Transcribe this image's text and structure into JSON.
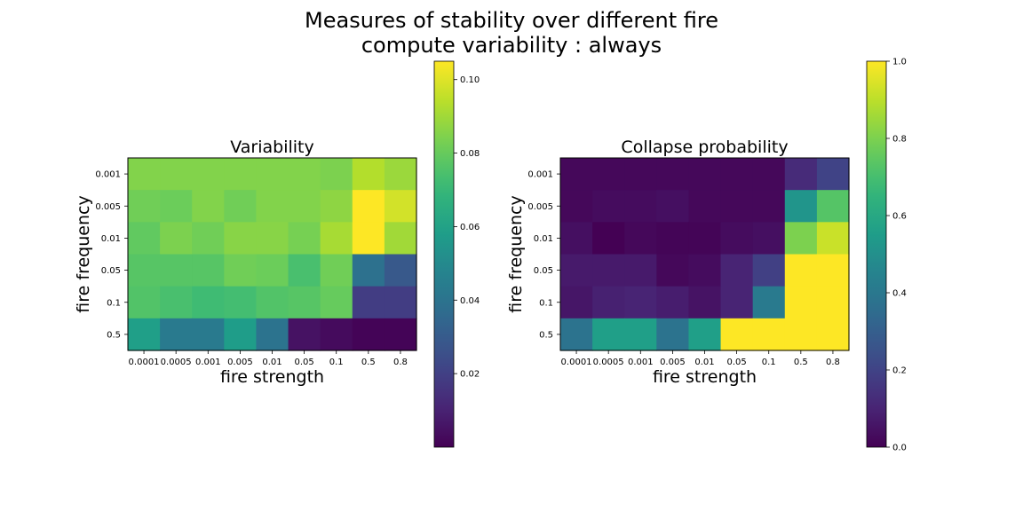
{
  "figure": {
    "title_line1": "Measures of stability over different fire",
    "title_line2": "compute variability : always"
  },
  "chart_data": [
    {
      "type": "heatmap",
      "title": "Variability",
      "xlabel": "fire strength",
      "ylabel": "fire frequency",
      "x_categories": [
        "0.0001",
        "0.0005",
        "0.001",
        "0.005",
        "0.01",
        "0.05",
        "0.1",
        "0.5",
        "0.8"
      ],
      "y_categories": [
        "0.001",
        "0.005",
        "0.01",
        "0.05",
        "0.1",
        "0.5"
      ],
      "values": [
        [
          0.085,
          0.085,
          0.085,
          0.085,
          0.085,
          0.085,
          0.084,
          0.093,
          0.089
        ],
        [
          0.082,
          0.081,
          0.085,
          0.082,
          0.085,
          0.085,
          0.087,
          0.105,
          0.098
        ],
        [
          0.079,
          0.084,
          0.082,
          0.086,
          0.086,
          0.083,
          0.091,
          0.105,
          0.09
        ],
        [
          0.077,
          0.077,
          0.077,
          0.082,
          0.081,
          0.074,
          0.082,
          0.039,
          0.029
        ],
        [
          0.076,
          0.074,
          0.072,
          0.073,
          0.076,
          0.077,
          0.08,
          0.019,
          0.019
        ],
        [
          0.059,
          0.043,
          0.043,
          0.058,
          0.04,
          0.005,
          0.003,
          0.001,
          0.001
        ]
      ],
      "colorbar": {
        "ticks": [
          "0.02",
          "0.04",
          "0.06",
          "0.08",
          "0.10"
        ],
        "range": [
          0.0,
          0.105
        ]
      },
      "colormap": "viridis"
    },
    {
      "type": "heatmap",
      "title": "Collapse probability",
      "xlabel": "fire strength",
      "ylabel": "fire frequency",
      "x_categories": [
        "0.0001",
        "0.0005",
        "0.001",
        "0.005",
        "0.01",
        "0.05",
        "0.1",
        "0.5",
        "0.8"
      ],
      "y_categories": [
        "0.001",
        "0.005",
        "0.01",
        "0.05",
        "0.1",
        "0.5"
      ],
      "values": [
        [
          0.02,
          0.02,
          0.02,
          0.02,
          0.02,
          0.02,
          0.02,
          0.12,
          0.2
        ],
        [
          0.02,
          0.03,
          0.03,
          0.04,
          0.02,
          0.02,
          0.02,
          0.52,
          0.73
        ],
        [
          0.04,
          0.0,
          0.02,
          0.01,
          0.01,
          0.03,
          0.04,
          0.8,
          0.92
        ],
        [
          0.07,
          0.07,
          0.07,
          0.02,
          0.03,
          0.1,
          0.19,
          1.0,
          1.0
        ],
        [
          0.06,
          0.09,
          0.1,
          0.08,
          0.05,
          0.1,
          0.41,
          1.0,
          1.0
        ],
        [
          0.38,
          0.56,
          0.56,
          0.38,
          0.56,
          1.0,
          1.0,
          1.0,
          1.0
        ]
      ],
      "colorbar": {
        "ticks": [
          "0.0",
          "0.2",
          "0.4",
          "0.6",
          "0.8",
          "1.0"
        ],
        "range": [
          0.0,
          1.0
        ]
      },
      "colormap": "viridis"
    }
  ]
}
